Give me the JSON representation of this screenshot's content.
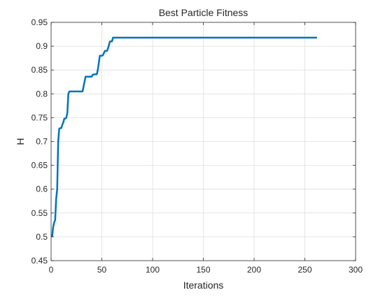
{
  "chart_data": {
    "type": "line",
    "title": "Best Particle Fitness",
    "xlabel": "Iterations",
    "ylabel": "H",
    "xlim": [
      0,
      300
    ],
    "ylim": [
      0.45,
      0.95
    ],
    "xticks": [
      0,
      50,
      100,
      150,
      200,
      250,
      300
    ],
    "yticks": [
      0.45,
      0.5,
      0.55,
      0.6,
      0.65,
      0.7,
      0.75,
      0.8,
      0.85,
      0.9,
      0.95
    ],
    "grid": true,
    "line_color": "#0072BD",
    "series": [
      {
        "x": [
          1,
          2,
          3,
          4,
          5,
          6,
          7,
          8,
          9,
          10,
          11,
          12,
          13,
          14,
          15,
          16,
          17,
          18,
          19,
          20,
          22,
          25,
          28,
          31,
          33,
          34,
          36,
          38,
          40,
          41,
          43,
          45,
          46,
          48,
          50,
          51,
          53,
          55,
          56,
          58,
          60,
          61,
          63,
          80,
          120,
          160,
          200,
          240,
          262
        ],
        "y": [
          0.5,
          0.52,
          0.53,
          0.535,
          0.58,
          0.6,
          0.7,
          0.727,
          0.728,
          0.728,
          0.735,
          0.74,
          0.748,
          0.748,
          0.75,
          0.76,
          0.8,
          0.805,
          0.805,
          0.805,
          0.805,
          0.805,
          0.805,
          0.805,
          0.826,
          0.836,
          0.836,
          0.836,
          0.836,
          0.84,
          0.841,
          0.841,
          0.85,
          0.88,
          0.88,
          0.881,
          0.89,
          0.89,
          0.895,
          0.91,
          0.91,
          0.918,
          0.918,
          0.918,
          0.918,
          0.918,
          0.918,
          0.918,
          0.918
        ]
      }
    ]
  }
}
